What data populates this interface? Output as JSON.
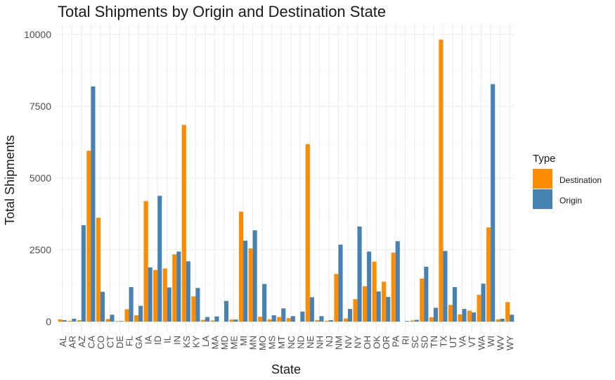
{
  "chart_data": {
    "type": "bar",
    "title": "Total Shipments by Origin and Destination State",
    "xlabel": "State",
    "ylabel": "Total Shipments",
    "ylim": [
      0,
      10500
    ],
    "y_ticks": [
      0,
      2500,
      5000,
      7500,
      10000
    ],
    "grid": true,
    "legend": {
      "title": "Type",
      "position": "right"
    },
    "categories": [
      "AL",
      "AR",
      "AZ",
      "CA",
      "CO",
      "CT",
      "DE",
      "FL",
      "GA",
      "IA",
      "ID",
      "IL",
      "IN",
      "KS",
      "KY",
      "LA",
      "MA",
      "MD",
      "ME",
      "MI",
      "MN",
      "MO",
      "MS",
      "MT",
      "NC",
      "ND",
      "NE",
      "NH",
      "NJ",
      "NM",
      "NV",
      "NY",
      "OH",
      "OK",
      "OR",
      "PA",
      "RI",
      "SC",
      "SD",
      "TN",
      "TX",
      "UT",
      "VA",
      "VT",
      "WA",
      "WI",
      "WV",
      "WY"
    ],
    "series": [
      {
        "name": "Destination",
        "color": "#FF8C00",
        "values": [
          80,
          30,
          50,
          5950,
          3620,
          90,
          20,
          430,
          220,
          4200,
          1800,
          1850,
          2340,
          6850,
          880,
          60,
          40,
          0,
          70,
          3830,
          2550,
          170,
          80,
          160,
          120,
          0,
          6180,
          50,
          30,
          1660,
          110,
          780,
          1230,
          2090,
          1390,
          2400,
          0,
          40,
          1500,
          150,
          9820,
          580,
          250,
          380,
          930,
          3280,
          80,
          680
        ]
      },
      {
        "name": "Origin",
        "color": "#4682B4",
        "values": [
          50,
          100,
          3360,
          8190,
          1040,
          240,
          20,
          1200,
          550,
          1890,
          4380,
          1190,
          2440,
          2100,
          1170,
          160,
          180,
          720,
          70,
          2820,
          3180,
          1310,
          220,
          460,
          190,
          350,
          850,
          190,
          50,
          2680,
          440,
          3310,
          2440,
          1050,
          860,
          2800,
          20,
          60,
          1910,
          480,
          2460,
          1200,
          440,
          320,
          1320,
          8270,
          100,
          240
        ]
      }
    ]
  }
}
